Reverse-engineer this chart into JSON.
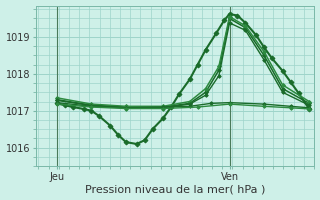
{
  "background_color": "#cef0e8",
  "grid_color": "#9ed4ca",
  "ylim": [
    1015.5,
    1019.85
  ],
  "yticks": [
    1016,
    1017,
    1018,
    1019
  ],
  "xlabel": "Pression niveau de la mer( hPa )",
  "xlabel_fontsize": 8,
  "tick_fontsize": 7,
  "xlim": [
    -0.01,
    1.04
  ],
  "vline_x_jeu": 0.07,
  "vline_x_ven": 0.72,
  "series": [
    {
      "x": [
        0.07,
        0.1,
        0.13,
        0.17,
        0.2,
        0.23,
        0.27,
        0.3,
        0.33,
        0.37,
        0.4,
        0.43,
        0.47,
        0.5,
        0.53,
        0.57,
        0.6,
        0.63,
        0.67,
        0.7,
        0.72,
        0.75,
        0.78,
        0.82,
        0.85,
        0.88,
        0.92,
        0.95,
        0.98,
        1.02
      ],
      "y": [
        1017.2,
        1017.15,
        1017.1,
        1017.05,
        1017.0,
        1016.85,
        1016.6,
        1016.35,
        1016.15,
        1016.1,
        1016.2,
        1016.5,
        1016.8,
        1017.1,
        1017.45,
        1017.85,
        1018.25,
        1018.65,
        1019.1,
        1019.45,
        1019.62,
        1019.58,
        1019.38,
        1019.05,
        1018.72,
        1018.42,
        1018.08,
        1017.78,
        1017.48,
        1017.05
      ],
      "color": "#1a6b2a",
      "lw": 1.5,
      "marker": "D",
      "ms": 2.5
    },
    {
      "x": [
        0.07,
        0.2,
        0.33,
        0.47,
        0.57,
        0.63,
        0.68,
        0.72,
        0.78,
        0.85,
        0.92,
        1.02
      ],
      "y": [
        1017.3,
        1017.15,
        1017.1,
        1017.1,
        1017.2,
        1017.5,
        1018.1,
        1019.5,
        1019.25,
        1018.5,
        1017.6,
        1017.2
      ],
      "color": "#1a6b2a",
      "lw": 1.1,
      "marker": "D",
      "ms": 2.0
    },
    {
      "x": [
        0.07,
        0.2,
        0.33,
        0.47,
        0.57,
        0.63,
        0.68,
        0.72,
        0.78,
        0.85,
        0.92,
        1.02
      ],
      "y": [
        1017.35,
        1017.18,
        1017.12,
        1017.12,
        1017.25,
        1017.6,
        1018.2,
        1019.55,
        1019.3,
        1018.6,
        1017.7,
        1017.25
      ],
      "color": "#2d8a40",
      "lw": 1.1,
      "marker": "D",
      "ms": 2.0
    },
    {
      "x": [
        0.07,
        0.2,
        0.33,
        0.47,
        0.57,
        0.63,
        0.68,
        0.72,
        0.78,
        0.85,
        0.92,
        1.02
      ],
      "y": [
        1017.28,
        1017.14,
        1017.08,
        1017.08,
        1017.18,
        1017.42,
        1017.95,
        1019.38,
        1019.18,
        1018.38,
        1017.5,
        1017.15
      ],
      "color": "#1a6b2a",
      "lw": 1.0,
      "marker": "D",
      "ms": 1.8
    },
    {
      "x": [
        0.07,
        0.2,
        0.33,
        0.47,
        0.57,
        0.65,
        0.72,
        0.85,
        0.95,
        1.02
      ],
      "y": [
        1017.22,
        1017.12,
        1017.08,
        1017.1,
        1017.12,
        1017.2,
        1017.22,
        1017.18,
        1017.12,
        1017.08
      ],
      "color": "#1a6b2a",
      "lw": 1.0,
      "marker": "D",
      "ms": 1.8
    },
    {
      "x": [
        0.07,
        0.2,
        0.33,
        0.47,
        0.6,
        0.72,
        0.85,
        0.95,
        1.02
      ],
      "y": [
        1017.18,
        1017.1,
        1017.06,
        1017.06,
        1017.1,
        1017.18,
        1017.12,
        1017.08,
        1017.05
      ],
      "color": "#2d8a40",
      "lw": 1.0,
      "marker": "D",
      "ms": 1.8
    }
  ],
  "xtick_labels": [
    "Jeu",
    "Ven"
  ],
  "xtick_positions": [
    0.07,
    0.72
  ]
}
